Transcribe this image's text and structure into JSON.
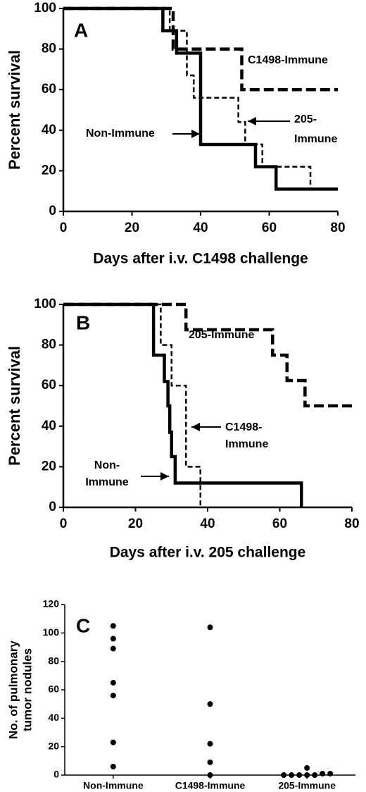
{
  "chart_data": [
    {
      "type": "step",
      "label": "A",
      "xlabel": "Days after i.v. C1498 challenge",
      "ylabel": "Percent survival",
      "xlim": [
        0,
        80
      ],
      "ylim": [
        0,
        100
      ],
      "xticks": [
        0,
        20,
        40,
        60,
        80
      ],
      "yticks": [
        0,
        20,
        40,
        60,
        80,
        100
      ],
      "series": [
        {
          "color": "#000000",
          "linestyle": "solid",
          "x": [
            0,
            29,
            33,
            40,
            56,
            62,
            80
          ],
          "values": [
            100,
            89,
            78,
            33,
            22,
            11,
            11
          ]
        },
        {
          "color": "#000000",
          "linestyle": "long-dash",
          "x": [
            0,
            32,
            52,
            80
          ],
          "values": [
            100,
            80,
            60,
            60
          ]
        },
        {
          "color": "#000000",
          "linestyle": "short-dash",
          "x": [
            0,
            31,
            36,
            38,
            51,
            53,
            58,
            72,
            80
          ],
          "values": [
            100,
            89,
            67,
            56,
            44,
            33,
            22,
            11,
            11
          ]
        }
      ],
      "annotations": [
        "C1498-Immune",
        "Non-Immune",
        "205-",
        "Immune"
      ]
    },
    {
      "type": "step",
      "label": "B",
      "xlabel": "Days after i.v. 205 challenge",
      "ylabel": "Percent survival",
      "xlim": [
        0,
        80
      ],
      "ylim": [
        0,
        100
      ],
      "xticks": [
        0,
        20,
        40,
        60,
        80
      ],
      "yticks": [
        0,
        20,
        40,
        60,
        80,
        100
      ],
      "series": [
        {
          "color": "#000000",
          "linestyle": "solid",
          "x": [
            0,
            25,
            28,
            29,
            29.5,
            30,
            31,
            66
          ],
          "values": [
            100,
            75,
            62,
            50,
            37,
            25,
            12,
            0
          ]
        },
        {
          "color": "#000000",
          "linestyle": "short-dash",
          "x": [
            0,
            27,
            30,
            34,
            38
          ],
          "values": [
            100,
            80,
            60,
            20,
            0
          ]
        },
        {
          "color": "#000000",
          "linestyle": "long-dash",
          "x": [
            0,
            34,
            58,
            62,
            67,
            80
          ],
          "values": [
            100,
            87.5,
            75,
            62.5,
            50,
            50
          ]
        }
      ],
      "annotations": [
        "205-Immune",
        "C1498-",
        "Immune",
        "Non-",
        "Immune"
      ]
    },
    {
      "type": "dotplot",
      "label": "C",
      "ylabel": [
        "No. of pulmonary",
        "tumor nodules"
      ],
      "ylim": [
        0,
        120
      ],
      "yticks": [
        0,
        20,
        40,
        60,
        80,
        100,
        120
      ],
      "categories": [
        "Non-Immune",
        "C1498-Immune",
        "205-Immune"
      ],
      "color": "#000000",
      "values": [
        [
          105,
          96,
          89,
          65,
          56,
          23,
          6
        ],
        [
          104,
          50,
          22,
          9,
          0
        ],
        [
          1,
          1,
          0,
          5,
          0,
          0,
          0,
          0
        ]
      ]
    }
  ]
}
